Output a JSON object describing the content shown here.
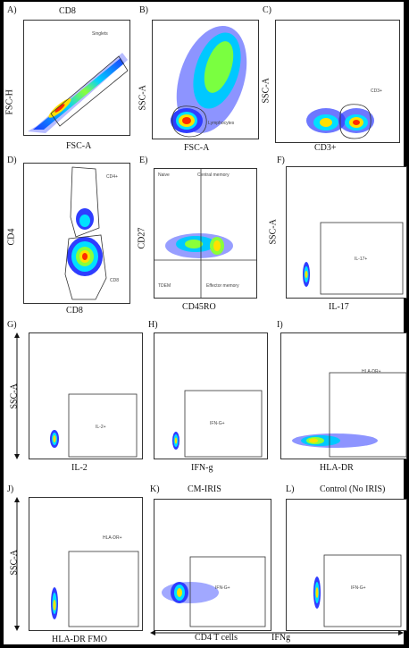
{
  "panels": {
    "A": {
      "letter": "A)",
      "title": "CD8",
      "xlabel": "FSC-A",
      "ylabel": "FSC-H",
      "gate": "Singlets"
    },
    "B": {
      "letter": "B)",
      "xlabel": "FSC-A",
      "ylabel": "SSC-A",
      "gate": "Lymphocytes"
    },
    "C": {
      "letter": "C)",
      "xlabel": "CD3+",
      "ylabel": "SSC-A",
      "gate": "CD3+"
    },
    "D": {
      "letter": "D)",
      "xlabel": "CD8",
      "ylabel": "CD4",
      "gate_top": "CD4+",
      "gate_bottom": "CD8"
    },
    "E": {
      "letter": "E)",
      "xlabel": "CD45RO",
      "ylabel": "CD27",
      "q_tl": "Naive",
      "q_tr": "Central memory",
      "q_bl": "TDEM",
      "q_br": "Effector memory"
    },
    "F": {
      "letter": "F)",
      "xlabel": "IL-17",
      "ylabel": "SSC-A",
      "gate": "IL-17+"
    },
    "G": {
      "letter": "G)",
      "xlabel": "IL-2",
      "ylabel": "SSC-A",
      "gate": "IL-2+"
    },
    "H": {
      "letter": "H)",
      "xlabel": "IFN-g",
      "gate": "IFN-G+"
    },
    "I": {
      "letter": "I)",
      "xlabel": "HLA-DR",
      "gate": "HLA-DR+"
    },
    "J": {
      "letter": "J)",
      "xlabel": "HLA-DR FMO",
      "ylabel": "SSC-A",
      "gate": "HLA-DR+"
    },
    "K": {
      "letter": "K)",
      "title": "CM-IRIS",
      "gate": "IFN-G+"
    },
    "L": {
      "letter": "L)",
      "title": "Control (No IRIS)",
      "gate": "IFN-G+"
    }
  },
  "bottom": {
    "left_label": "CD4 T cells",
    "right_label": "IFNg"
  }
}
